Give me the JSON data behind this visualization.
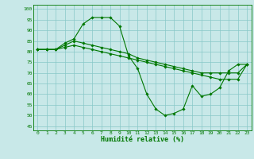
{
  "title": "",
  "xlabel": "Humidité relative (%)",
  "ylabel": "",
  "bg_color": "#c8e8e8",
  "grid_color": "#88c8c8",
  "line_color": "#007700",
  "xlim": [
    -0.5,
    23.5
  ],
  "ylim": [
    43,
    102
  ],
  "yticks": [
    45,
    50,
    55,
    60,
    65,
    70,
    75,
    80,
    85,
    90,
    95,
    100
  ],
  "xticks": [
    0,
    1,
    2,
    3,
    4,
    5,
    6,
    7,
    8,
    9,
    10,
    11,
    12,
    13,
    14,
    15,
    16,
    17,
    18,
    19,
    20,
    21,
    22,
    23
  ],
  "line1_x": [
    0,
    1,
    2,
    3,
    4,
    5,
    6,
    7,
    8,
    9,
    10,
    11,
    12,
    13,
    14,
    15,
    16,
    17,
    18,
    19,
    20,
    21,
    22,
    23
  ],
  "line1_y": [
    81,
    81,
    81,
    84,
    86,
    93,
    96,
    96,
    96,
    92,
    78,
    72,
    60,
    53,
    50,
    51,
    53,
    64,
    59,
    60,
    63,
    71,
    74,
    74
  ],
  "line2_x": [
    0,
    1,
    2,
    3,
    4,
    5,
    6,
    7,
    8,
    9,
    10,
    11,
    12,
    13,
    14,
    15,
    16,
    17,
    18,
    19,
    20,
    21,
    22,
    23
  ],
  "line2_y": [
    81,
    81,
    81,
    83,
    85,
    84,
    83,
    82,
    81,
    80,
    79,
    77,
    76,
    75,
    74,
    73,
    72,
    71,
    70,
    70,
    70,
    70,
    70,
    74
  ],
  "line3_x": [
    0,
    1,
    2,
    3,
    4,
    5,
    6,
    7,
    8,
    9,
    10,
    11,
    12,
    13,
    14,
    15,
    16,
    17,
    18,
    19,
    20,
    21,
    22,
    23
  ],
  "line3_y": [
    81,
    81,
    81,
    82,
    83,
    82,
    81,
    80,
    79,
    78,
    77,
    76,
    75,
    74,
    73,
    72,
    71,
    70,
    69,
    68,
    67,
    67,
    67,
    74
  ],
  "marker": "D",
  "markersize": 1.8,
  "linewidth": 0.8
}
